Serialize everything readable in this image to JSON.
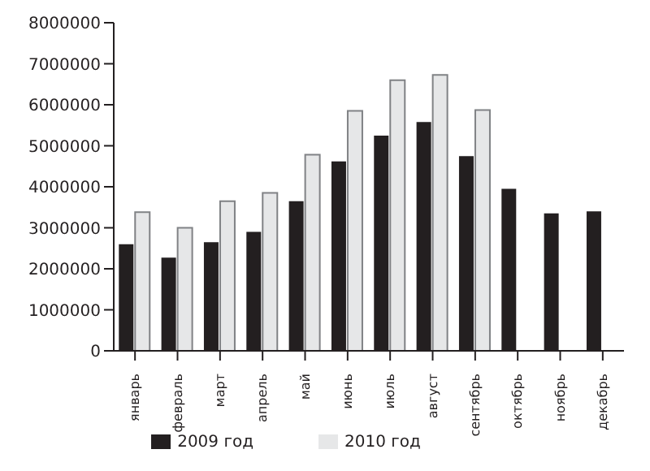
{
  "chart_data": {
    "type": "bar",
    "categories": [
      "январь",
      "февраль",
      "март",
      "апрель",
      "май",
      "июнь",
      "июль",
      "август",
      "сентябрь",
      "октябрь",
      "ноябрь",
      "декабрь"
    ],
    "series": [
      {
        "name": "2009 год",
        "color": "#231f20",
        "values": [
          2600000,
          2270000,
          2650000,
          2900000,
          3650000,
          4620000,
          5250000,
          5580000,
          4750000,
          3950000,
          3350000,
          3400000
        ]
      },
      {
        "name": "2010 год",
        "color": "#e6e7e8",
        "values": [
          3380000,
          3000000,
          3650000,
          3850000,
          4780000,
          5850000,
          6600000,
          6730000,
          5870000,
          null,
          null,
          null
        ]
      }
    ],
    "ylim": [
      0,
      8000000
    ],
    "yticks": [
      0,
      1000000,
      2000000,
      3000000,
      4000000,
      5000000,
      6000000,
      7000000,
      8000000
    ],
    "grid": false,
    "legend": "bottom"
  }
}
